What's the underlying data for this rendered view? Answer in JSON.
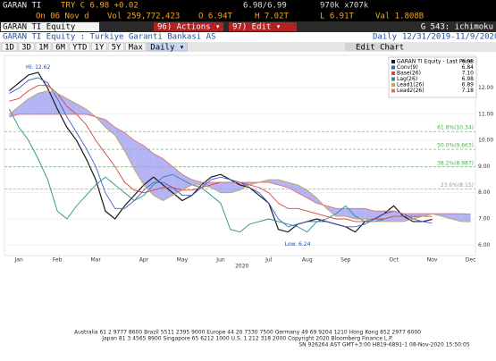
{
  "header": {
    "ticker": "GARAN TI",
    "quote": "TRY C 6.98 +0.02",
    "bid_ask": "6.98/6.99",
    "size": "970k x707k",
    "row2": [
      "On 06 Nov d",
      "Vol 259,772,423",
      "O 6.94T",
      "H 7.02T",
      "L 6.91T",
      "Val 1.808B"
    ]
  },
  "toolbar": {
    "security": "GARAN TI Equity",
    "actions": "96) Actions ▾",
    "edit": "97) Edit ▾",
    "function": "G 543: ichimoku"
  },
  "info": {
    "name": "GARAN TI Equity : Turkiye Garanti Bankasi AS",
    "period": "Daily",
    "range": "12/31/2019-11/9/2020"
  },
  "buttons": [
    "1D",
    "3D",
    "1M",
    "6M",
    "YTD",
    "1Y",
    "5Y",
    "Max",
    "Daily ▾"
  ],
  "edit_chart": "Edit Chart",
  "chart_data": {
    "type": "line",
    "categories": [
      null,
      "Jan",
      null,
      null,
      null,
      "Feb",
      null,
      null,
      null,
      "Mar",
      null,
      null,
      null,
      null,
      "Apr",
      null,
      null,
      null,
      "May",
      null,
      null,
      null,
      "Jun",
      null,
      null,
      null,
      null,
      "Jul",
      null,
      null,
      null,
      "Aug",
      null,
      null,
      null,
      "Sep",
      null,
      null,
      null,
      null,
      "Oct",
      null,
      null,
      null,
      "Nov",
      null,
      null,
      null,
      "Dec"
    ],
    "year_label": "2020",
    "ylim": [
      5.6,
      13.25
    ],
    "yticks": [
      {
        "value": 6,
        "label": "6.00"
      },
      {
        "value": 7,
        "label": "7.00"
      },
      {
        "value": 8,
        "label": "8.00"
      },
      {
        "value": 9,
        "label": "9.00"
      },
      {
        "value": 10,
        "label": "10.00"
      },
      {
        "value": 11,
        "label": "11.00"
      },
      {
        "value": 12,
        "label": "12.00"
      }
    ],
    "series": [
      {
        "name": "GARAN TI Equity - Last Price",
        "legend_value": "6.98",
        "color": "#1a1a1a",
        "values": [
          11.9,
          12.2,
          12.5,
          12.6,
          12.0,
          11.2,
          10.5,
          10.0,
          9.3,
          8.5,
          7.3,
          7.0,
          7.5,
          7.9,
          8.3,
          8.6,
          8.3,
          8.0,
          7.7,
          7.9,
          8.3,
          8.6,
          8.7,
          8.5,
          8.3,
          8.2,
          7.9,
          7.6,
          6.6,
          6.5,
          6.8,
          6.9,
          7.0,
          6.9,
          6.8,
          6.7,
          6.5,
          6.9,
          7.0,
          7.2,
          7.5,
          7.1,
          6.9,
          6.9,
          6.98,
          null,
          null,
          null,
          null
        ]
      },
      {
        "name": "Conv(9)",
        "legend_value": "6.84",
        "color": "#3a5fcd",
        "values": [
          11.8,
          12.0,
          12.3,
          12.4,
          12.2,
          11.6,
          10.9,
          10.3,
          9.7,
          9.0,
          8.0,
          7.4,
          7.4,
          7.7,
          8.1,
          8.4,
          8.4,
          8.2,
          7.9,
          7.9,
          8.2,
          8.5,
          8.6,
          8.5,
          8.4,
          8.2,
          8.0,
          7.6,
          7.0,
          6.7,
          6.8,
          6.9,
          6.9,
          6.9,
          6.8,
          6.7,
          6.7,
          6.8,
          7.0,
          7.2,
          7.3,
          7.2,
          7.0,
          6.9,
          6.84,
          null,
          null,
          null,
          null
        ]
      },
      {
        "name": "Base(26)",
        "legend_value": "7.10",
        "color": "#d9433b",
        "values": [
          11.5,
          11.6,
          11.9,
          12.1,
          12.1,
          11.8,
          11.3,
          11.0,
          10.6,
          10.0,
          9.5,
          9.0,
          8.4,
          8.1,
          8.0,
          8.1,
          8.2,
          8.2,
          8.1,
          8.1,
          8.2,
          8.3,
          8.4,
          8.4,
          8.4,
          8.3,
          8.2,
          8.0,
          7.6,
          7.4,
          7.4,
          7.3,
          7.2,
          7.1,
          7.0,
          7.0,
          6.9,
          6.9,
          7.0,
          7.0,
          7.1,
          7.1,
          7.1,
          7.1,
          7.1,
          null,
          null,
          null,
          null
        ]
      },
      {
        "name": "Lag(26)",
        "legend_value": "6.98",
        "color": "#2b8c8c",
        "values": [
          11.2,
          10.5,
          10.0,
          9.3,
          8.5,
          7.3,
          7.0,
          7.5,
          7.9,
          8.3,
          8.6,
          8.3,
          8.0,
          7.7,
          7.9,
          8.3,
          8.6,
          8.7,
          8.5,
          8.3,
          8.2,
          7.9,
          7.6,
          6.6,
          6.5,
          6.8,
          6.9,
          7.0,
          6.9,
          6.8,
          6.7,
          6.5,
          6.9,
          7.0,
          7.2,
          7.5,
          7.1,
          6.9,
          6.9,
          6.98,
          null,
          null,
          null,
          null,
          null,
          null,
          null,
          null,
          null
        ]
      },
      {
        "name": "Lead1(26)",
        "legend_value": "6.89",
        "color": "#b8a860",
        "cloud": true,
        "values": [
          11.0,
          11.3,
          11.6,
          11.8,
          11.9,
          11.8,
          11.6,
          11.4,
          11.2,
          10.9,
          10.5,
          10.2,
          9.6,
          8.9,
          8.3,
          7.9,
          7.7,
          7.9,
          8.1,
          8.3,
          8.3,
          8.2,
          8.0,
          8.0,
          8.1,
          8.3,
          8.4,
          8.5,
          8.5,
          8.4,
          8.3,
          8.1,
          7.8,
          7.4,
          7.1,
          7.1,
          7.0,
          7.0,
          6.9,
          6.9,
          6.9,
          6.9,
          7.0,
          7.1,
          7.2,
          7.1,
          7.0,
          6.9,
          6.89
        ]
      },
      {
        "name": "Lead2(26)",
        "legend_value": "7.18",
        "color": "#e07070",
        "cloud": true,
        "values": [
          10.9,
          11.0,
          11.0,
          11.0,
          11.0,
          11.0,
          11.0,
          11.0,
          11.0,
          10.9,
          10.8,
          10.5,
          10.3,
          10.0,
          9.8,
          9.5,
          9.3,
          9.0,
          8.7,
          8.5,
          8.4,
          8.4,
          8.4,
          8.4,
          8.4,
          8.4,
          8.4,
          8.4,
          8.3,
          8.2,
          8.0,
          7.8,
          7.6,
          7.5,
          7.4,
          7.4,
          7.4,
          7.4,
          7.3,
          7.3,
          7.3,
          7.2,
          7.2,
          7.2,
          7.2,
          7.2,
          7.2,
          7.2,
          7.18
        ]
      }
    ],
    "cloud_color": "#9b9bf0",
    "fib_levels": [
      {
        "label": "61.8%(10.34)",
        "value": 10.34,
        "color": "#4caf50"
      },
      {
        "label": "50.0%(9.663)",
        "value": 9.663,
        "color": "#4caf50"
      },
      {
        "label": "38.2%(8.987)",
        "value": 8.987,
        "color": "#4caf50"
      },
      {
        "label": "23.6%(8.15)",
        "value": 8.15,
        "color": "#999999"
      }
    ],
    "annotations": [
      {
        "text": "Hi: 12.62",
        "value": 12.62,
        "index": 3
      },
      {
        "text": "Low: 6.24",
        "value": 6.24,
        "index": 30
      }
    ]
  },
  "footer": [
    "Australia 61 2 9777 8600 Brazil 5511 2395 9000 Europe 44 20 7330 7500 Germany 49 69 9204 1210 Hong Kong 852 2977 6000",
    "Japan 81 3 4565 8900 Singapore 65 6212 1000 U.S. 1 212 318 2000 Copyright 2020 Bloomberg Finance L.P.",
    "SN 926264 AST GMT+3:00 H819-6891-1 08-Nov-2020 15:50:05"
  ]
}
